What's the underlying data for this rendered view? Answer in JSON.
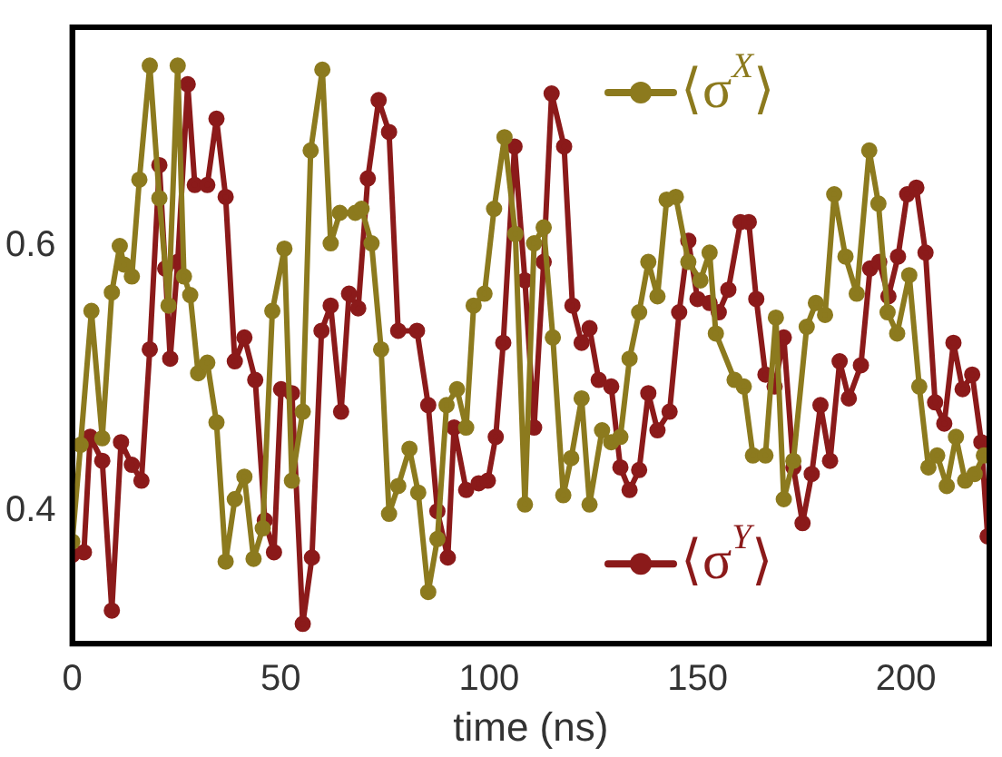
{
  "chart_data": {
    "type": "line",
    "xlabel": "time (ns)",
    "xlim": [
      0,
      220
    ],
    "xticks": [
      0,
      50,
      100,
      150,
      200
    ],
    "ylim": [
      0.3,
      0.765
    ],
    "yticks": [
      0.4,
      0.6
    ],
    "grid": false,
    "legend": "right",
    "marker": "circle",
    "line_style": "solid",
    "series": [
      {
        "name": "⟨σ$^{X}$⟩",
        "color": "#8c7a1e",
        "x": [
          0,
          2,
          4.6,
          7.2,
          9.5,
          11.4,
          12.4,
          14.3,
          16.1,
          18.6,
          20.9,
          23.1,
          25.3,
          26.8,
          28.3,
          30.2,
          32.4,
          34.6,
          36.8,
          39,
          41.3,
          43.5,
          45.7,
          48,
          50.9,
          52.7,
          55.3,
          57.2,
          60,
          62,
          64.2,
          67.9,
          69.4,
          71.8,
          74.1,
          76,
          78.2,
          80.9,
          83,
          85.4,
          87.6,
          89.8,
          92.3,
          94.5,
          96.3,
          98.9,
          101.2,
          103.7,
          106.3,
          108.6,
          110.8,
          113.1,
          115.3,
          117.8,
          119.7,
          122.2,
          124.1,
          127.1,
          129.3,
          131.5,
          133.7,
          136,
          138.2,
          140.4,
          142.6,
          144.8,
          147.8,
          150.7,
          152.9,
          154.4,
          158.9,
          161.1,
          163.3,
          166.3,
          168.8,
          170.7,
          173,
          176.2,
          178.4,
          180.6,
          182.8,
          185.5,
          188.2,
          191.2,
          193.4,
          195.6,
          197.9,
          200.8,
          203.2,
          205.4,
          207.5,
          209.8,
          212,
          214.2,
          216.5,
          218.7
        ],
        "values": [
          0.377,
          0.45,
          0.551,
          0.455,
          0.565,
          0.6,
          0.586,
          0.577,
          0.65,
          0.736,
          0.636,
          0.555,
          0.736,
          0.577,
          0.563,
          0.504,
          0.512,
          0.467,
          0.362,
          0.409,
          0.426,
          0.364,
          0.387,
          0.551,
          0.598,
          0.423,
          0.475,
          0.672,
          0.733,
          0.602,
          0.625,
          0.625,
          0.628,
          0.602,
          0.522,
          0.398,
          0.419,
          0.447,
          0.414,
          0.339,
          0.379,
          0.48,
          0.492,
          0.463,
          0.555,
          0.564,
          0.628,
          0.682,
          0.609,
          0.405,
          0.602,
          0.614,
          0.531,
          0.412,
          0.44,
          0.485,
          0.405,
          0.461,
          0.452,
          0.456,
          0.515,
          0.55,
          0.588,
          0.562,
          0.635,
          0.637,
          0.588,
          0.574,
          0.595,
          0.534,
          0.499,
          0.494,
          0.442,
          0.442,
          0.546,
          0.409,
          0.438,
          0.539,
          0.557,
          0.548,
          0.639,
          0.592,
          0.564,
          0.672,
          0.632,
          0.55,
          0.534,
          0.578,
          0.494,
          0.433,
          0.442,
          0.419,
          0.456,
          0.423,
          0.428,
          0.442
        ]
      },
      {
        "name": "⟨σ$^{Y}$⟩",
        "color": "#8b1a1a",
        "x": [
          0,
          2.8,
          4.3,
          7.2,
          9.5,
          11.7,
          14.3,
          16.6,
          18.6,
          20.9,
          22.3,
          23.5,
          25.3,
          27.7,
          29.4,
          32.4,
          34.6,
          36.8,
          39,
          41.3,
          43.9,
          46.2,
          48.4,
          50.1,
          52.7,
          55.3,
          57.5,
          59.8,
          62,
          64.5,
          66.4,
          68.6,
          70.9,
          73.5,
          76,
          78.2,
          82.7,
          85.4,
          87.6,
          90.1,
          91.6,
          94.5,
          97.5,
          99.7,
          101.6,
          103.4,
          106.1,
          108.6,
          110.8,
          113.1,
          115,
          118,
          120,
          122.2,
          124.1,
          126.3,
          129.3,
          131.5,
          133.7,
          136,
          138.2,
          140.4,
          143.3,
          145.6,
          147.8,
          150,
          152.9,
          155.1,
          157.4,
          160.3,
          162.3,
          164.1,
          166.3,
          168.5,
          170.7,
          173,
          175.2,
          177.4,
          179.5,
          181.8,
          184.1,
          186.3,
          189.2,
          191.4,
          193.6,
          195.8,
          198.1,
          200.3,
          202.5,
          204.7,
          207,
          209.2,
          211.4,
          213.6,
          215.9,
          218.1,
          219.6
        ],
        "values": [
          0.367,
          0.369,
          0.456,
          0.438,
          0.325,
          0.452,
          0.435,
          0.423,
          0.522,
          0.661,
          0.583,
          0.515,
          0.588,
          0.722,
          0.646,
          0.646,
          0.696,
          0.637,
          0.513,
          0.531,
          0.499,
          0.393,
          0.369,
          0.492,
          0.489,
          0.315,
          0.365,
          0.536,
          0.555,
          0.475,
          0.564,
          0.553,
          0.651,
          0.71,
          0.686,
          0.536,
          0.536,
          0.48,
          0.4,
          0.365,
          0.463,
          0.416,
          0.421,
          0.423,
          0.456,
          0.527,
          0.675,
          0.574,
          0.463,
          0.588,
          0.715,
          0.675,
          0.555,
          0.527,
          0.538,
          0.499,
          0.494,
          0.433,
          0.416,
          0.431,
          0.489,
          0.461,
          0.475,
          0.55,
          0.604,
          0.56,
          0.557,
          0.55,
          0.567,
          0.618,
          0.618,
          0.56,
          0.503,
          0.494,
          0.531,
          0.433,
          0.391,
          0.428,
          0.48,
          0.438,
          0.513,
          0.485,
          0.51,
          0.583,
          0.588,
          0.562,
          0.592,
          0.639,
          0.644,
          0.595,
          0.482,
          0.466,
          0.527,
          0.492,
          0.503,
          0.452,
          0.381
        ]
      }
    ]
  }
}
